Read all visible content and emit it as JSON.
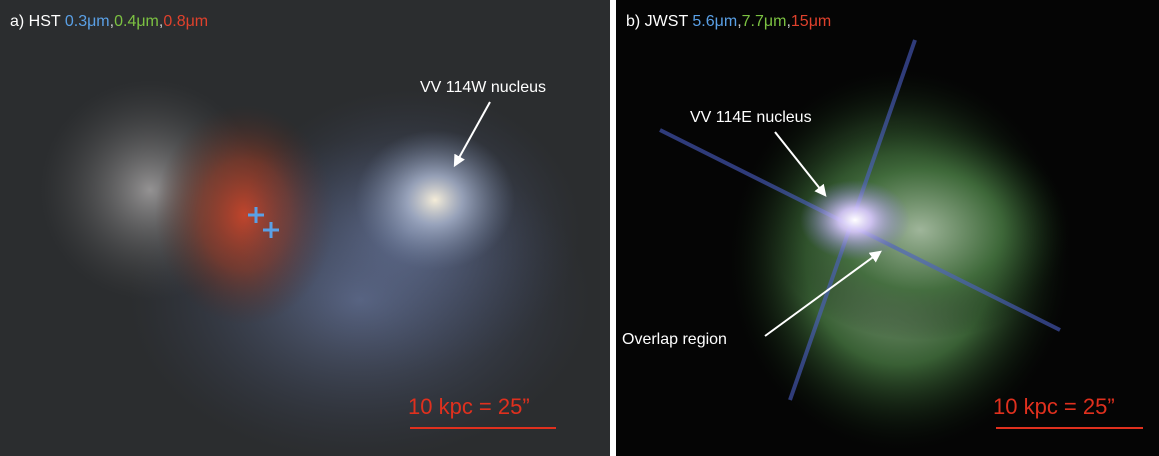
{
  "panels": [
    {
      "label": "a) HST",
      "separator": ",",
      "bands": [
        {
          "text": "0.3μm",
          "color": "#5aa0e6"
        },
        {
          "text": "0.4μm",
          "color": "#7cc242"
        },
        {
          "text": "0.8μm",
          "color": "#e0412c"
        }
      ],
      "annotations": [
        "VV 114W nucleus"
      ],
      "scale_bar": "10 kpc = 25”"
    },
    {
      "label": "b) JWST",
      "separator": ",",
      "bands": [
        {
          "text": "5.6μm",
          "color": "#5aa0e6"
        },
        {
          "text": "7.7μm",
          "color": "#7cc242"
        },
        {
          "text": "15μm",
          "color": "#e0412c"
        }
      ],
      "annotations": [
        "VV 114E nucleus",
        "Overlap region"
      ],
      "scale_bar": "10 kpc = 25”"
    }
  ]
}
